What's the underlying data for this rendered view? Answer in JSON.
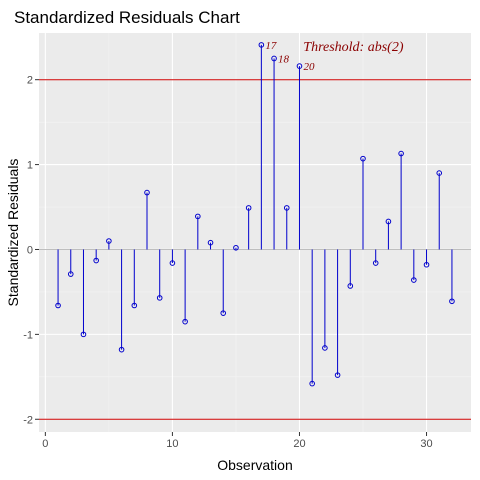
{
  "chart_data": {
    "type": "scatter",
    "title": "Standardized Residuals Chart",
    "xlabel": "Observation",
    "ylabel": "Standardized Residuals",
    "xlim": [
      -0.5,
      33.5
    ],
    "ylim": [
      -2.15,
      2.55
    ],
    "xticks": [
      0,
      10,
      20,
      30
    ],
    "yticks": [
      -2,
      -1,
      0,
      1,
      2
    ],
    "grid": true,
    "series": [
      {
        "x": [
          1,
          2,
          3,
          4,
          5,
          6,
          7,
          8,
          9,
          10,
          11,
          12,
          13,
          14,
          15,
          16,
          17,
          18,
          19,
          20,
          21,
          22,
          23,
          24,
          25,
          26,
          27,
          28,
          29,
          30,
          31,
          32
        ],
        "values": [
          -0.66,
          -0.29,
          -1.0,
          -0.13,
          0.1,
          -1.18,
          -0.66,
          0.67,
          -0.57,
          -0.16,
          -0.85,
          0.39,
          0.08,
          -0.75,
          0.02,
          0.49,
          2.41,
          2.25,
          0.49,
          2.16,
          -1.58,
          -1.16,
          -1.48,
          -0.43,
          1.07,
          -0.16,
          0.33,
          1.13,
          -0.36,
          -0.18,
          0.9,
          -0.61
        ]
      }
    ],
    "threshold": [
      2,
      -2
    ],
    "annotation": "Threshold: abs(2)",
    "outliers": [
      {
        "label": "17",
        "x": 17,
        "y": 2.41
      },
      {
        "label": "18",
        "x": 18,
        "y": 2.25
      },
      {
        "label": "20",
        "x": 20,
        "y": 2.16
      }
    ],
    "colors": {
      "panel": "#ebebeb",
      "grid_major": "#ffffff",
      "grid_minor": "#f4f4f4",
      "stem": "#0000cd",
      "threshold": "#cc0000",
      "label": "#8b0000",
      "zero_line": "#bebebe"
    }
  }
}
